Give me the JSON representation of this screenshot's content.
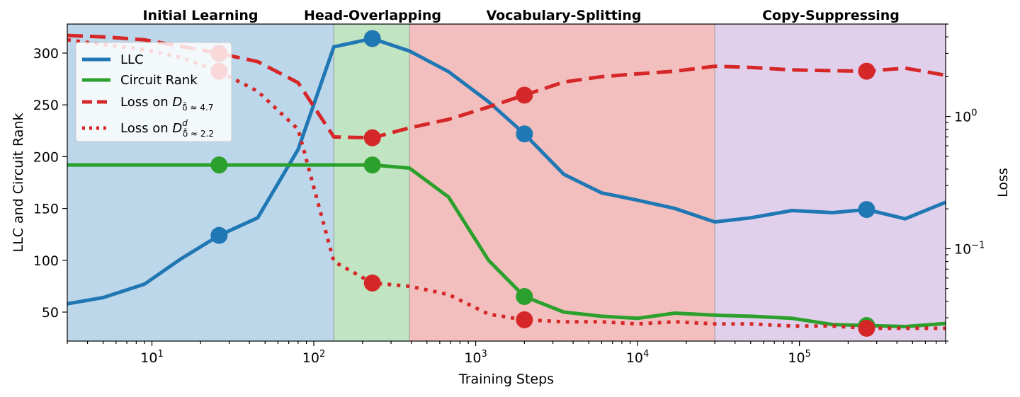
{
  "chart_data": {
    "type": "line",
    "x_scale": "log",
    "xlabel": "Training Steps",
    "ylabel_left": "LLC and Circuit Rank",
    "ylabel_right": "Loss",
    "xlim": [
      3,
      800000
    ],
    "ylim_left": [
      22,
      328
    ],
    "ylim_right_log": [
      0.02,
      5.0
    ],
    "x_ticks": [
      {
        "value": 10,
        "base": "10",
        "exp": "1"
      },
      {
        "value": 100,
        "base": "10",
        "exp": "2"
      },
      {
        "value": 1000,
        "base": "10",
        "exp": "3"
      },
      {
        "value": 10000,
        "base": "10",
        "exp": "4"
      },
      {
        "value": 100000,
        "base": "10",
        "exp": "5"
      }
    ],
    "y_left_ticks": [
      50,
      100,
      150,
      200,
      250,
      300
    ],
    "y_right_ticks": [
      {
        "value": 1.0,
        "base": "10",
        "exp": "0"
      },
      {
        "value": 0.1,
        "base": "10",
        "exp": "−1"
      }
    ],
    "phases": [
      {
        "name": "Initial Learning",
        "start": 3,
        "end": 133,
        "color": "#bcd6ea"
      },
      {
        "name": "Head-Overlapping",
        "start": 133,
        "end": 390,
        "color": "#c1e4c2"
      },
      {
        "name": "Vocabulary-Splitting",
        "start": 390,
        "end": 30000,
        "color": "#f2bfbe"
      },
      {
        "name": "Copy-Suppressing",
        "start": 30000,
        "end": 800000,
        "color": "#e0d0eb"
      }
    ],
    "series": [
      {
        "name": "LLC",
        "axis": "left",
        "color": "#1f77b4",
        "style": "solid",
        "x": [
          3,
          5,
          9,
          15,
          26,
          45,
          80,
          133,
          230,
          390,
          680,
          1200,
          2000,
          3500,
          6000,
          10000,
          17000,
          30000,
          50000,
          90000,
          160000,
          260000,
          450000,
          800000
        ],
        "y": [
          58,
          64,
          77,
          101,
          124,
          141,
          207,
          306,
          314,
          302,
          282,
          253,
          222,
          183,
          165,
          158,
          150,
          137,
          141,
          148,
          146,
          149,
          140,
          156
        ]
      },
      {
        "name": "Circuit Rank",
        "axis": "left",
        "color": "#2ca02c",
        "style": "solid",
        "x": [
          3,
          5,
          9,
          15,
          26,
          45,
          80,
          133,
          230,
          390,
          680,
          1200,
          2000,
          3500,
          6000,
          10000,
          17000,
          30000,
          50000,
          90000,
          160000,
          260000,
          450000,
          800000
        ],
        "y": [
          192,
          192,
          192,
          192,
          192,
          192,
          192,
          192,
          192,
          189,
          161,
          100,
          65,
          50,
          46,
          44,
          49,
          47,
          46,
          44,
          38,
          37,
          36,
          39
        ]
      },
      {
        "name": "Loss on D_{δ̄≈4.7}",
        "axis": "right",
        "color": "#d62728",
        "style": "dashed",
        "x": [
          3,
          5,
          9,
          15,
          26,
          45,
          80,
          133,
          230,
          390,
          680,
          1200,
          2000,
          3500,
          6000,
          10000,
          17000,
          30000,
          50000,
          90000,
          160000,
          260000,
          450000,
          800000
        ],
        "y": [
          4.1,
          4.0,
          3.8,
          3.4,
          3.0,
          2.6,
          1.8,
          0.7,
          0.69,
          0.82,
          0.95,
          1.18,
          1.45,
          1.82,
          2.0,
          2.1,
          2.2,
          2.4,
          2.35,
          2.25,
          2.22,
          2.2,
          2.32,
          2.05
        ]
      },
      {
        "name": "Loss on D^d_{δ̄≈2.2}",
        "axis": "right",
        "color": "#d62728",
        "style": "dotted",
        "x": [
          3,
          5,
          9,
          15,
          26,
          45,
          80,
          133,
          230,
          390,
          680,
          1200,
          2000,
          3500,
          6000,
          10000,
          17000,
          30000,
          50000,
          90000,
          160000,
          260000,
          450000,
          800000
        ],
        "y": [
          3.8,
          3.5,
          3.2,
          2.8,
          2.2,
          1.55,
          0.8,
          0.08,
          0.055,
          0.052,
          0.045,
          0.032,
          0.029,
          0.028,
          0.028,
          0.027,
          0.028,
          0.027,
          0.027,
          0.026,
          0.026,
          0.025,
          0.025,
          0.025
        ]
      }
    ],
    "markers": [
      {
        "series": "LLC",
        "x": 26,
        "y": 124
      },
      {
        "series": "LLC",
        "x": 230,
        "y": 314
      },
      {
        "series": "LLC",
        "x": 2000,
        "y": 222
      },
      {
        "series": "LLC",
        "x": 260000,
        "y": 149
      },
      {
        "series": "Circuit Rank",
        "x": 26,
        "y": 192
      },
      {
        "series": "Circuit Rank",
        "x": 230,
        "y": 192
      },
      {
        "series": "Circuit Rank",
        "x": 2000,
        "y": 65
      },
      {
        "series": "Circuit Rank",
        "x": 260000,
        "y": 37
      },
      {
        "series": "Loss on D_{δ̄≈4.7}",
        "x": 26,
        "y": 3.0
      },
      {
        "series": "Loss on D_{δ̄≈4.7}",
        "x": 230,
        "y": 0.69
      },
      {
        "series": "Loss on D_{δ̄≈4.7}",
        "x": 2000,
        "y": 1.45
      },
      {
        "series": "Loss on D_{δ̄≈4.7}",
        "x": 260000,
        "y": 2.2
      },
      {
        "series": "Loss on D^d_{δ̄≈2.2}",
        "x": 26,
        "y": 2.2
      },
      {
        "series": "Loss on D^d_{δ̄≈2.2}",
        "x": 230,
        "y": 0.055
      },
      {
        "series": "Loss on D^d_{δ̄≈2.2}",
        "x": 2000,
        "y": 0.029
      },
      {
        "series": "Loss on D^d_{δ̄≈2.2}",
        "x": 260000,
        "y": 0.025
      }
    ],
    "legend": {
      "position": "upper-left",
      "entries": [
        {
          "label": "LLC",
          "color": "#1f77b4",
          "style": "solid"
        },
        {
          "label": "Circuit Rank",
          "color": "#2ca02c",
          "style": "solid"
        },
        {
          "label_prefix": "Loss on ",
          "math": "D",
          "sub": "δ̄ ≈ 4.7",
          "sup": "",
          "color": "#d62728",
          "style": "dashed"
        },
        {
          "label_prefix": "Loss on ",
          "math": "D",
          "sub": "δ̄ ≈ 2.2",
          "sup": "d",
          "color": "#d62728",
          "style": "dotted"
        }
      ]
    }
  }
}
